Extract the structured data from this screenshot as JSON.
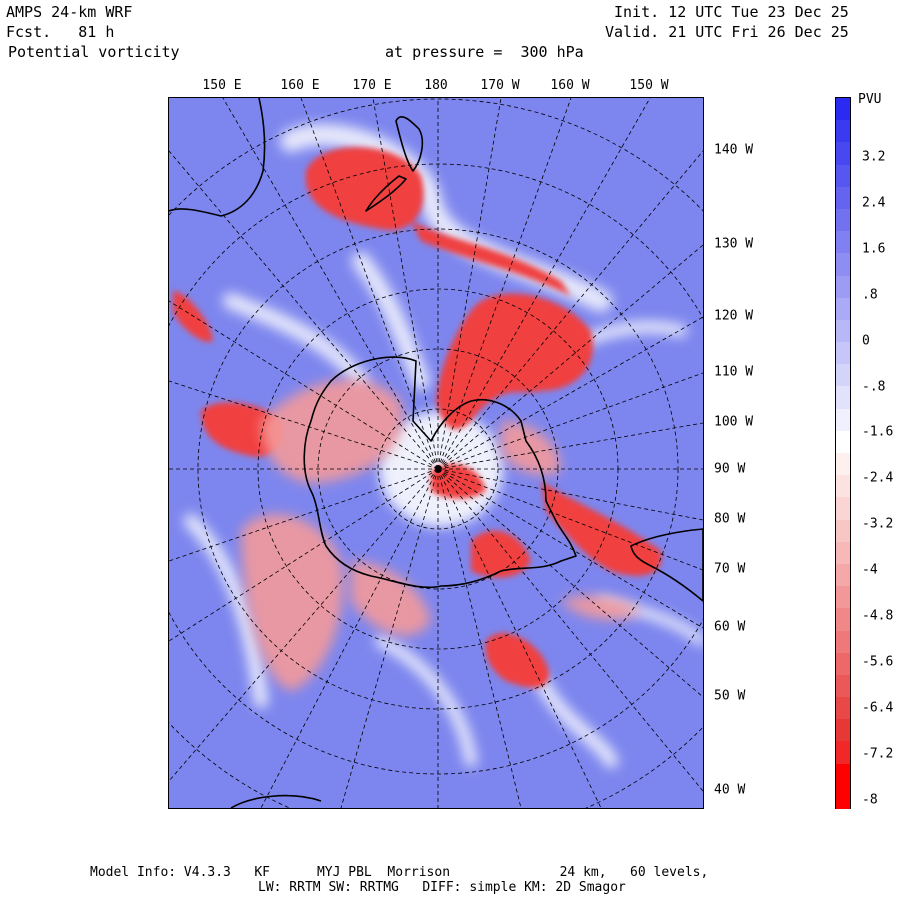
{
  "header": {
    "model": "AMPS 24-km WRF",
    "forecast": "Fcst.   81 h",
    "field": "Potential vorticity",
    "pressure": "at pressure =  300 hPa",
    "init": "Init. 12 UTC Tue 23 Dec 25",
    "valid": "Valid. 21 UTC Fri 26 Dec 25"
  },
  "map": {
    "top_labels": [
      "150 E",
      "160 E",
      "170 E",
      "180",
      "170 W",
      "160 W",
      "150 W"
    ],
    "right_labels": [
      "140 W",
      "130 W",
      "120 W",
      "110 W",
      "100 W",
      "90 W",
      "80 W",
      "70 W",
      "60 W",
      "50 W",
      "40 W"
    ]
  },
  "colorbar": {
    "title": "PVU",
    "labels": [
      "3.2",
      "2.4",
      "1.6",
      ".8",
      "0",
      "-.8",
      "-1.6",
      "-2.4",
      "-3.2",
      "-4",
      "-4.8",
      "-5.6",
      "-6.4",
      "-7.2",
      "-8"
    ],
    "colors": [
      "#2a2af0",
      "#3a3af0",
      "#4848f0",
      "#5656f0",
      "#6464f0",
      "#7272f0",
      "#8080f2",
      "#8e8ef2",
      "#9c9cf4",
      "#aaaaf6",
      "#b8b8f8",
      "#c6c6fa",
      "#d4d4fb",
      "#e2e2fc",
      "#f0f0fe",
      "#ffffff",
      "#fff0f0",
      "#fde2e2",
      "#fbd4d4",
      "#f9c6c6",
      "#f7b8b8",
      "#f5a8a8",
      "#f39898",
      "#f18888",
      "#ef7878",
      "#ed6868",
      "#eb5858",
      "#e94848",
      "#e73838",
      "#f02828",
      "#ff0000",
      "#ff0000"
    ]
  },
  "footer": {
    "line1": "Model Info: V4.3.3   KF      MYJ PBL  Morrison              24 km,   60 levels,",
    "line2": "LW: RRTM SW: RRTMG   DIFF: simple KM: 2D Smagor"
  }
}
